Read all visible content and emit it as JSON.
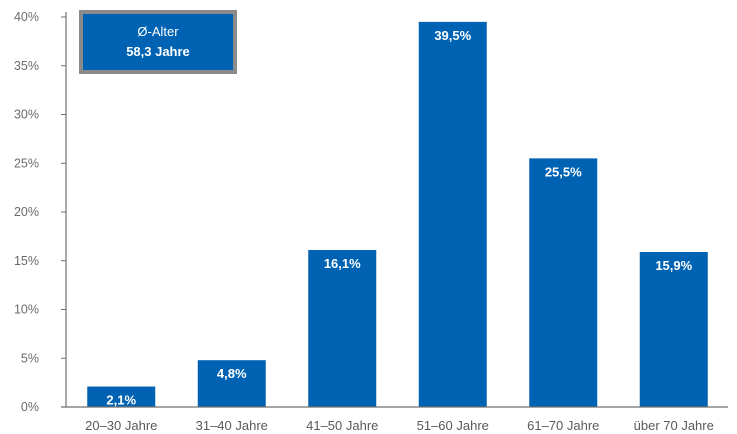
{
  "chart_data": {
    "type": "bar",
    "categories": [
      "20–30 Jahre",
      "31–40 Jahre",
      "41–50 Jahre",
      "51–60 Jahre",
      "61–70 Jahre",
      "über 70 Jahre"
    ],
    "values": [
      2.1,
      4.8,
      16.1,
      39.5,
      25.5,
      15.9
    ],
    "value_labels": [
      "2,1%",
      "4,8%",
      "16,1%",
      "39,5%",
      "25,5%",
      "15,9%"
    ],
    "ylim": [
      0,
      40
    ],
    "yticks": [
      0,
      5,
      10,
      15,
      20,
      25,
      30,
      35,
      40
    ],
    "ytick_labels": [
      "0%",
      "5%",
      "10%",
      "15%",
      "20%",
      "25%",
      "30%",
      "35%",
      "40%"
    ],
    "grid": false,
    "bar_color": "#0062b2",
    "axis_color": "#707070"
  },
  "average_box": {
    "title": "Ø-Alter",
    "value": "58,3 Jahre",
    "color": "#0062b2",
    "shadow_color": "#8a8a8a"
  }
}
